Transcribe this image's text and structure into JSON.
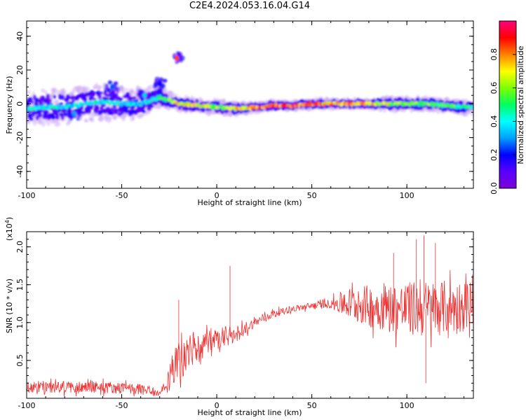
{
  "title": "C2E4.2024.053.16.04.G14",
  "colors": {
    "snr_line": "#ee3333",
    "colormap": [
      "#7a00d6",
      "#5a00ff",
      "#0000ff",
      "#00a0ff",
      "#00ffff",
      "#00ff60",
      "#7fff00",
      "#ffff00",
      "#ff8000",
      "#ff0000",
      "#ff0080"
    ]
  },
  "chart_data": [
    {
      "type": "heatmap",
      "xlabel": "Height of straight line (km)",
      "ylabel": "Frequency (Hz)",
      "xlim": [
        -100,
        135
      ],
      "ylim": [
        -50,
        49
      ],
      "xticks": [
        -100,
        -50,
        0,
        50,
        100
      ],
      "yticks": [
        40,
        20,
        0,
        -20,
        -40
      ],
      "colorbar": {
        "label": "Normalized spectral amplitude",
        "range": [
          0.0,
          1.0
        ],
        "ticks": [
          0.0,
          0.2,
          0.4,
          0.6,
          0.8
        ]
      },
      "ridge": {
        "x": [
          -100,
          -90,
          -80,
          -70,
          -60,
          -50,
          -40,
          -35,
          -30,
          -25,
          -20,
          -10,
          0,
          10,
          20,
          30,
          40,
          50,
          60,
          70,
          80,
          90,
          100,
          110,
          120,
          130,
          135
        ],
        "center_hz": [
          -3,
          -2,
          -2,
          0,
          1,
          0,
          0,
          2,
          4,
          2,
          0,
          -1,
          -2,
          -3,
          -2,
          -1,
          -1,
          0,
          0,
          0,
          0,
          0,
          0,
          0,
          -1,
          -2,
          -2
        ],
        "peak_amplitude": [
          0.45,
          0.45,
          0.4,
          0.45,
          0.45,
          0.4,
          0.4,
          0.45,
          0.5,
          0.6,
          0.75,
          0.75,
          0.65,
          0.75,
          0.85,
          0.95,
          0.95,
          0.9,
          0.85,
          0.9,
          0.8,
          0.7,
          0.6,
          0.6,
          0.55,
          0.55,
          0.5
        ],
        "spread_hz": [
          8,
          8,
          8,
          8,
          8,
          8,
          7,
          6,
          5,
          4,
          3,
          3,
          3,
          3,
          2,
          2,
          2,
          2,
          2,
          2,
          2,
          3,
          3,
          3,
          3,
          3,
          3
        ]
      },
      "side_blobs": [
        {
          "x": -21,
          "y": 27,
          "amplitude": 0.85
        },
        {
          "x": -30,
          "y": 12,
          "amplitude": 0.2
        },
        {
          "x": -38,
          "y": 5,
          "amplitude": 0.35
        },
        {
          "x": -55,
          "y": 10,
          "amplitude": 0.25
        },
        {
          "x": -75,
          "y": -6,
          "amplitude": 0.3
        }
      ]
    },
    {
      "type": "line",
      "xlabel": "Height of straight line (km)",
      "ylabel": "SNR (10 * v/v)",
      "multiplier_label": "(x10",
      "multiplier_exponent": "4",
      "multiplier_close": ")",
      "xlim": [
        -100,
        135
      ],
      "ylim": [
        0.0,
        2.2
      ],
      "xticks": [
        -100,
        -50,
        0,
        50,
        100
      ],
      "yticks": [
        0.5,
        1.0,
        1.5,
        2.0
      ],
      "envelope": {
        "x": [
          -100,
          -80,
          -60,
          -40,
          -30,
          -26,
          -24,
          -20,
          -15,
          -10,
          0,
          10,
          20,
          30,
          40,
          50,
          60,
          65,
          70,
          80,
          90,
          100,
          110,
          120,
          130,
          135
        ],
        "mean": [
          0.15,
          0.15,
          0.15,
          0.12,
          0.06,
          0.15,
          0.35,
          0.5,
          0.6,
          0.68,
          0.75,
          0.85,
          1.0,
          1.12,
          1.18,
          1.22,
          1.25,
          1.25,
          1.25,
          1.22,
          1.2,
          1.18,
          1.18,
          1.2,
          1.22,
          1.22
        ],
        "noise": [
          0.08,
          0.08,
          0.08,
          0.07,
          0.04,
          0.15,
          0.2,
          0.25,
          0.25,
          0.2,
          0.18,
          0.12,
          0.06,
          0.05,
          0.04,
          0.05,
          0.06,
          0.15,
          0.22,
          0.28,
          0.32,
          0.36,
          0.38,
          0.36,
          0.34,
          0.3
        ]
      },
      "spikes": [
        {
          "x": -20,
          "y": 1.3
        },
        {
          "x": 7,
          "y": 1.75
        },
        {
          "x": 93,
          "y": 1.92
        },
        {
          "x": 105,
          "y": 2.1
        },
        {
          "x": 109,
          "y": 2.15
        },
        {
          "x": 115,
          "y": 2.05
        },
        {
          "x": 110,
          "y": 0.2
        }
      ]
    }
  ]
}
